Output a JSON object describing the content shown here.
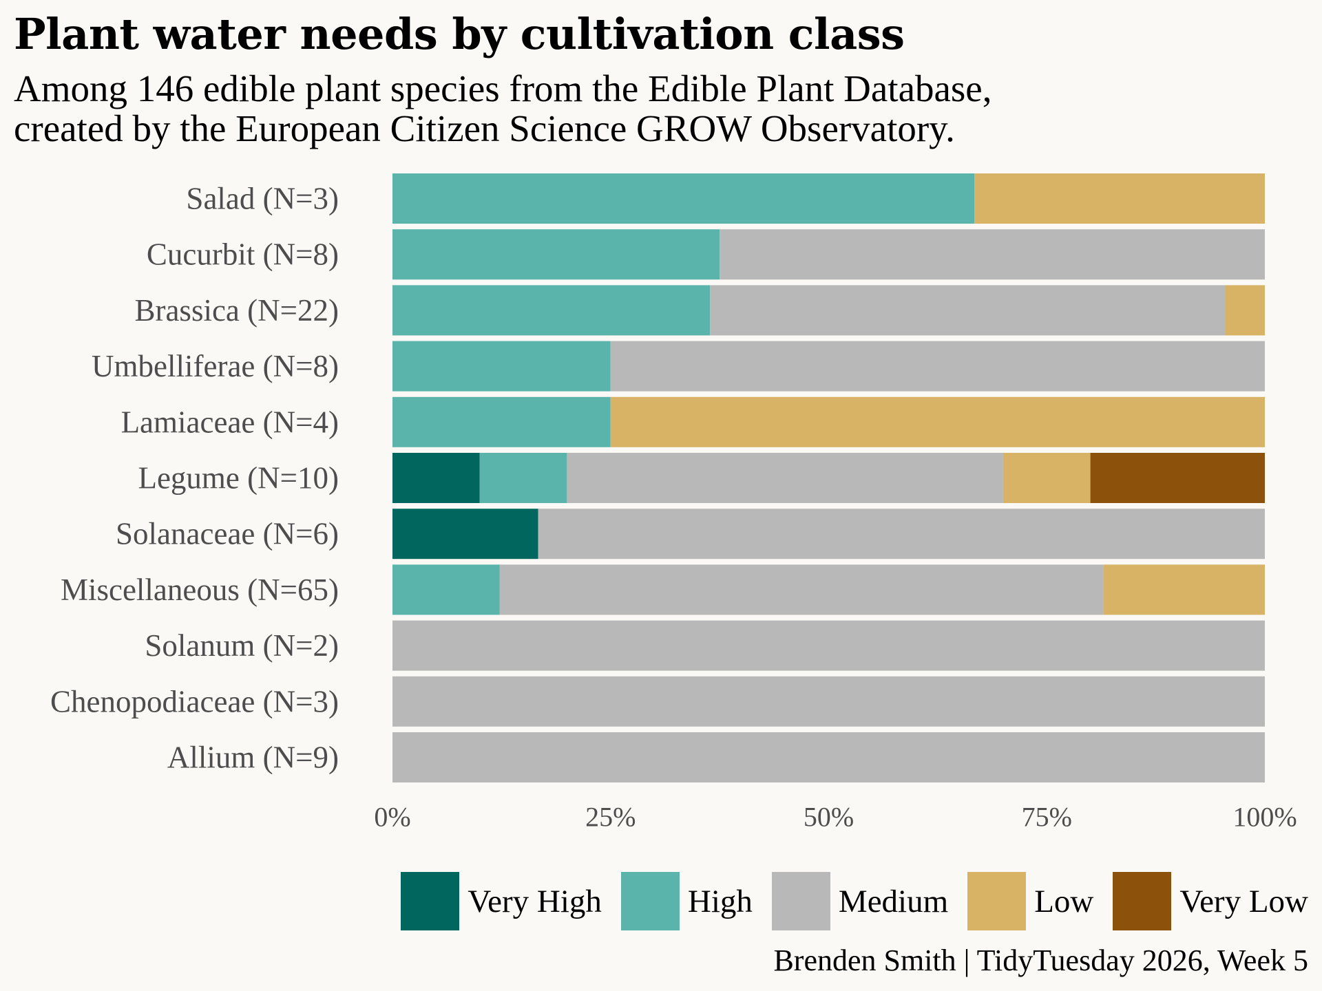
{
  "title": "Plant water needs by cultivation class",
  "subtitle_lines": [
    "Among 146 edible plant species from the Edible Plant Database,",
    "created by the European Citizen Science GROW Observatory."
  ],
  "caption": "Brenden Smith | TidyTuesday 2026, Week 5",
  "colors": {
    "Very High": "#01665e",
    "High": "#5ab4ac",
    "Medium": "#b8b8b8",
    "Low": "#d8b365",
    "Very Low": "#8c510a"
  },
  "chart_data": {
    "type": "bar",
    "orientation": "horizontal",
    "stacked": "percent",
    "title": "Plant water needs by cultivation class",
    "xlabel": "",
    "ylabel": "",
    "xlim": [
      0,
      100
    ],
    "x_ticks": [
      "0%",
      "25%",
      "50%",
      "75%",
      "100%"
    ],
    "legend_position": "bottom",
    "categories": [
      "Salad (N=3)",
      "Cucurbit (N=8)",
      "Brassica (N=22)",
      "Umbelliferae (N=8)",
      "Lamiaceae (N=4)",
      "Legume (N=10)",
      "Solanaceae (N=6)",
      "Miscellaneous (N=65)",
      "Solanum (N=2)",
      "Chenopodiaceae (N=3)",
      "Allium (N=9)"
    ],
    "series": [
      {
        "name": "Very High",
        "values": [
          0,
          0,
          0,
          0,
          0,
          10,
          16.7,
          0,
          0,
          0,
          0
        ]
      },
      {
        "name": "High",
        "values": [
          66.7,
          37.5,
          36.4,
          25,
          25,
          10,
          0,
          12.3,
          0,
          0,
          0
        ]
      },
      {
        "name": "Medium",
        "values": [
          0,
          62.5,
          59.1,
          75,
          0,
          50,
          83.3,
          69.2,
          100,
          100,
          100
        ]
      },
      {
        "name": "Low",
        "values": [
          33.3,
          0,
          4.5,
          0,
          75,
          10,
          0,
          18.5,
          0,
          0,
          0
        ]
      },
      {
        "name": "Very Low",
        "values": [
          0,
          0,
          0,
          0,
          0,
          20,
          0,
          0,
          0,
          0,
          0
        ]
      }
    ]
  }
}
